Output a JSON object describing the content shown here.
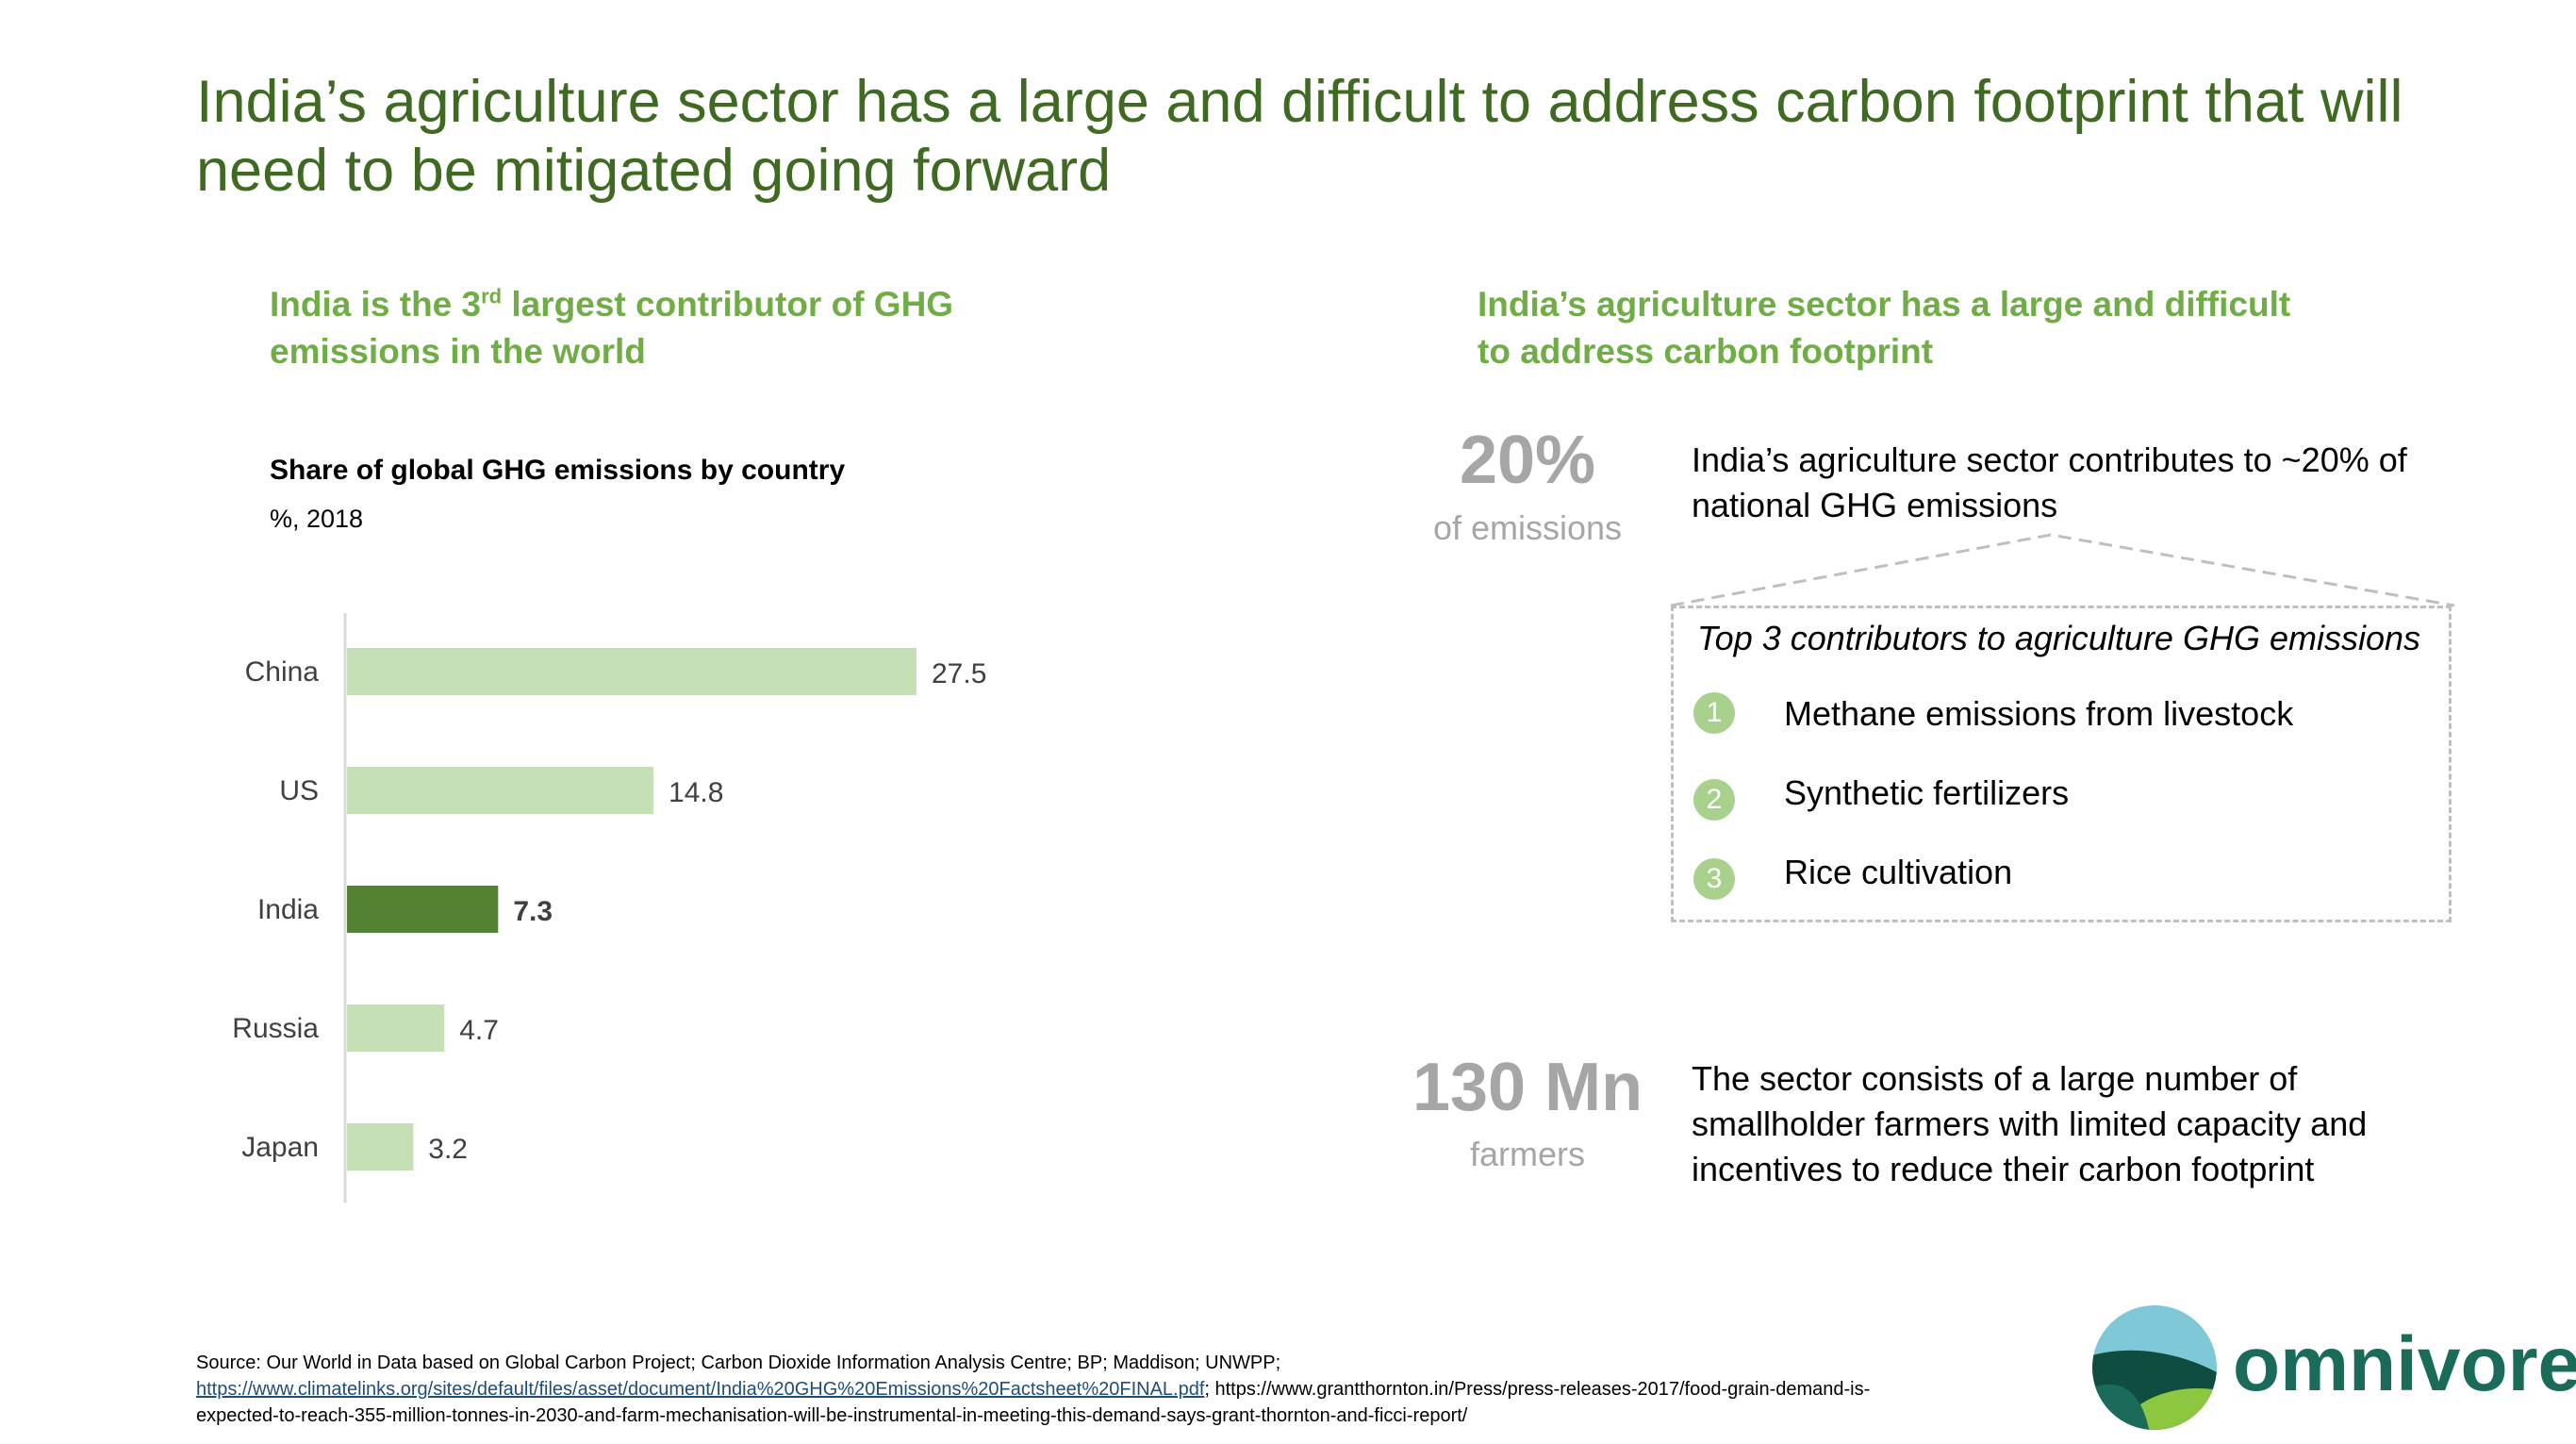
{
  "title": "India’s agriculture sector has a large and difficult to address carbon footprint that will need to be mitigated going forward",
  "left": {
    "subhead_a": "India is the 3",
    "subhead_sup": "rd",
    "subhead_b": " largest contributor of GHG emissions in the world"
  },
  "right": {
    "subhead": "India’s agriculture sector has a large and difficult to address carbon footprint",
    "stat1": {
      "value": "20%",
      "unit": "of emissions",
      "text": "India’s agriculture sector contributes to ~20% of national GHG emissions"
    },
    "contributors": {
      "title": "Top 3 contributors to agriculture GHG emissions",
      "items": [
        {
          "num": "1",
          "label": "Methane emissions from livestock"
        },
        {
          "num": "2",
          "label": "Synthetic fertilizers"
        },
        {
          "num": "3",
          "label": "Rice cultivation"
        }
      ]
    },
    "stat2": {
      "value": "130 Mn",
      "unit": "farmers",
      "text": "The sector consists of a large number of smallholder farmers with limited capacity and incentives to reduce their carbon footprint"
    }
  },
  "chart_data": {
    "type": "bar",
    "orientation": "horizontal",
    "title": "Share of global GHG emissions by country",
    "subtitle": "%, 2018",
    "categories": [
      "China",
      "US",
      "India",
      "Russia",
      "Japan"
    ],
    "values": [
      27.5,
      14.8,
      7.3,
      4.7,
      3.2
    ],
    "value_labels": [
      "27.5",
      "14.8",
      "7.3",
      "4.7",
      "3.2"
    ],
    "highlight": "India",
    "colors": {
      "default": "#c5e0b4",
      "highlight": "#548235"
    },
    "xlim": [
      0,
      27.5
    ],
    "grid": false,
    "legend": "none"
  },
  "source": {
    "prefix": "Source: Our World in Data based on Global Carbon Project; Carbon Dioxide Information Analysis Centre; BP; Maddison; UNWPP;",
    "link": "https://www.climatelinks.org/sites/default/files/asset/document/India%20GHG%20Emissions%20Factsheet%20FINAL.pdf",
    "suffix": "; https://www.grantthornton.in/Press/press-releases-2017/food-grain-demand-is-expected-to-reach-355-million-tonnes-in-2030-and-farm-mechanisation-will-be-instrumental-in-meeting-this-demand-says-grant-thornton-and-ficci-report/"
  },
  "logo": {
    "text": "omnivore",
    "colors": {
      "teal": "#1b6b5a",
      "sky": "#7ec8d8",
      "green": "#8dc63f",
      "dark": "#0f4d40"
    }
  }
}
